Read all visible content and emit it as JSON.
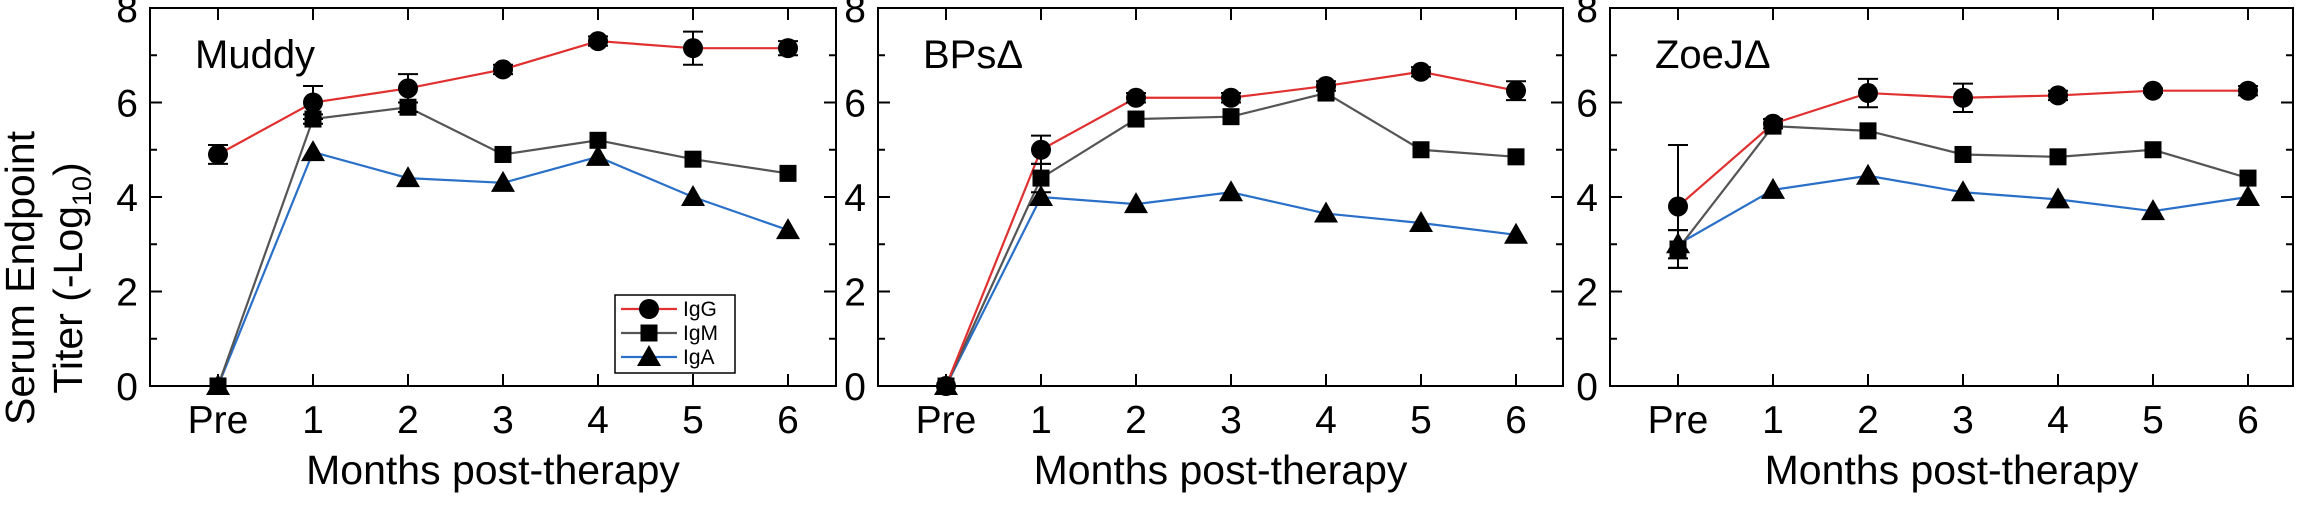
{
  "figure": {
    "ylabel_line1": "Serum Endpoint",
    "ylabel_line2_prefix": "Titer (-Log",
    "ylabel_subscript": "10",
    "ylabel_line2_suffix": ")"
  },
  "colors": {
    "IgG": "#e03030",
    "IgM": "#555555",
    "IgA": "#2a70c8",
    "marker": "#000000"
  },
  "chart_data": [
    {
      "type": "line",
      "title": "Muddy",
      "xlabel": "Months post-therapy",
      "categories": [
        "Pre",
        "1",
        "2",
        "3",
        "4",
        "5",
        "6"
      ],
      "ylim": [
        0,
        8
      ],
      "yticks": [
        0,
        2,
        4,
        6,
        8
      ],
      "legend": {
        "position": "bottom-right",
        "entries": [
          "IgG",
          "IgM",
          "IgA"
        ]
      },
      "series": [
        {
          "name": "IgG",
          "marker": "circle",
          "values": [
            4.9,
            6.0,
            6.3,
            6.7,
            7.3,
            7.15,
            7.15
          ],
          "errors": [
            0.2,
            0.35,
            0.3,
            0.1,
            0.1,
            0.35,
            0.15
          ]
        },
        {
          "name": "IgM",
          "marker": "square",
          "values": [
            0.0,
            5.65,
            5.9,
            4.9,
            5.2,
            4.8,
            4.5
          ],
          "errors": [
            0,
            0.1,
            0.1,
            0,
            0,
            0,
            0
          ]
        },
        {
          "name": "IgA",
          "marker": "triangle",
          "values": [
            0.0,
            4.95,
            4.4,
            4.3,
            4.85,
            4.0,
            3.3
          ],
          "errors": [
            0,
            0,
            0,
            0,
            0,
            0,
            0
          ]
        }
      ]
    },
    {
      "type": "line",
      "title": "BPsΔ",
      "xlabel": "Months post-therapy",
      "categories": [
        "Pre",
        "1",
        "2",
        "3",
        "4",
        "5",
        "6"
      ],
      "ylim": [
        0,
        8
      ],
      "yticks": [
        0,
        2,
        4,
        6,
        8
      ],
      "series": [
        {
          "name": "IgG",
          "marker": "circle",
          "values": [
            0.0,
            5.0,
            6.1,
            6.1,
            6.35,
            6.65,
            6.25
          ],
          "errors": [
            0,
            0.3,
            0.1,
            0.1,
            0.1,
            0.1,
            0.2
          ]
        },
        {
          "name": "IgM",
          "marker": "square",
          "values": [
            0.0,
            4.4,
            5.65,
            5.7,
            6.2,
            5.0,
            4.85
          ],
          "errors": [
            0,
            0.3,
            0,
            0,
            0,
            0,
            0
          ]
        },
        {
          "name": "IgA",
          "marker": "triangle",
          "values": [
            0.0,
            4.0,
            3.85,
            4.1,
            3.65,
            3.45,
            3.2
          ],
          "errors": [
            0,
            0,
            0,
            0,
            0,
            0,
            0
          ]
        }
      ]
    },
    {
      "type": "line",
      "title": "ZoeJΔ",
      "xlabel": "Months post-therapy",
      "categories": [
        "Pre",
        "1",
        "2",
        "3",
        "4",
        "5",
        "6"
      ],
      "ylim": [
        0,
        8
      ],
      "yticks": [
        0,
        2,
        4,
        6,
        8
      ],
      "series": [
        {
          "name": "IgG",
          "marker": "circle",
          "values": [
            3.8,
            5.55,
            6.2,
            6.1,
            6.15,
            6.25,
            6.25
          ],
          "errors": [
            1.3,
            0.1,
            0.3,
            0.3,
            0.1,
            0.05,
            0.1
          ]
        },
        {
          "name": "IgM",
          "marker": "square",
          "values": [
            2.9,
            5.5,
            5.4,
            4.9,
            4.85,
            5.0,
            4.4
          ],
          "errors": [
            0.4,
            0,
            0,
            0,
            0,
            0,
            0
          ]
        },
        {
          "name": "IgA",
          "marker": "triangle",
          "values": [
            3.0,
            4.15,
            4.45,
            4.1,
            3.95,
            3.7,
            4.0
          ],
          "errors": [
            0.3,
            0,
            0,
            0,
            0,
            0,
            0
          ]
        }
      ]
    }
  ]
}
